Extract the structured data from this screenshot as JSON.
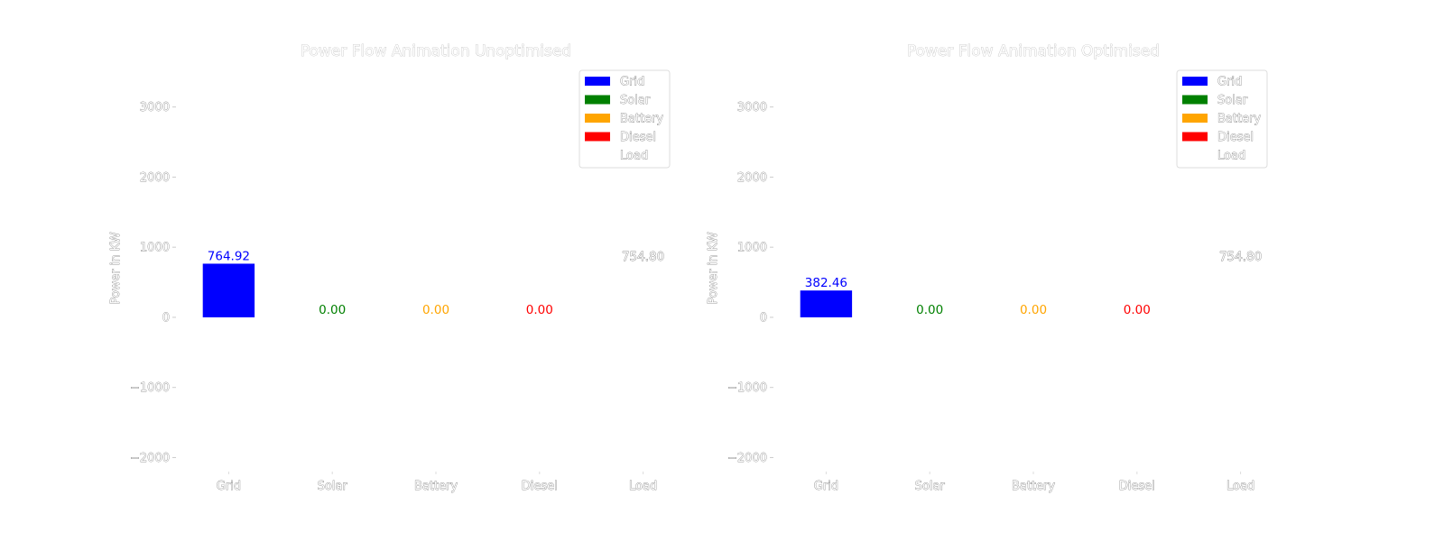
{
  "chart_data": [
    {
      "type": "bar",
      "title": "Power Flow Animation Unoptimised",
      "xlabel": "",
      "ylabel": "Power in KW",
      "ylim": [
        -2200,
        3600
      ],
      "yticks": [
        3000,
        2000,
        1000,
        0,
        -1000,
        -2000
      ],
      "ytick_labels": [
        "3000",
        "2000",
        "1000",
        "0",
        "−1000",
        "−2000"
      ],
      "categories": [
        "Grid",
        "Solar",
        "Battery",
        "Diesel",
        "Load"
      ],
      "values": [
        764.92,
        0.0,
        0.0,
        0.0,
        754.8
      ],
      "value_labels": [
        "764.92",
        "0.00",
        "0.00",
        "0.00",
        "754.80"
      ],
      "colors": [
        "#0000ff",
        "#008000",
        "#ffa500",
        "#ff0000",
        "#ffffff"
      ],
      "legend": {
        "placement": "top-right",
        "entries": [
          {
            "label": "Grid",
            "color": "#0000ff"
          },
          {
            "label": "Solar",
            "color": "#008000"
          },
          {
            "label": "Battery",
            "color": "#ffa500"
          },
          {
            "label": "Diesel",
            "color": "#ff0000"
          },
          {
            "label": "Load",
            "color": "#ffffff"
          }
        ]
      },
      "grid": false
    },
    {
      "type": "bar",
      "title": "Power Flow Animation Optimised",
      "xlabel": "",
      "ylabel": "Power in KW",
      "ylim": [
        -2200,
        3600
      ],
      "yticks": [
        3000,
        2000,
        1000,
        0,
        -1000,
        -2000
      ],
      "ytick_labels": [
        "3000",
        "2000",
        "1000",
        "0",
        "−1000",
        "−2000"
      ],
      "categories": [
        "Grid",
        "Solar",
        "Battery",
        "Diesel",
        "Load"
      ],
      "values": [
        382.46,
        0.0,
        0.0,
        0.0,
        754.8
      ],
      "value_labels": [
        "382.46",
        "0.00",
        "0.00",
        "0.00",
        "754.80"
      ],
      "colors": [
        "#0000ff",
        "#008000",
        "#ffa500",
        "#ff0000",
        "#ffffff"
      ],
      "legend": {
        "placement": "top-right",
        "entries": [
          {
            "label": "Grid",
            "color": "#0000ff"
          },
          {
            "label": "Solar",
            "color": "#008000"
          },
          {
            "label": "Battery",
            "color": "#ffa500"
          },
          {
            "label": "Diesel",
            "color": "#ff0000"
          },
          {
            "label": "Load",
            "color": "#ffffff"
          }
        ]
      },
      "grid": false
    }
  ]
}
